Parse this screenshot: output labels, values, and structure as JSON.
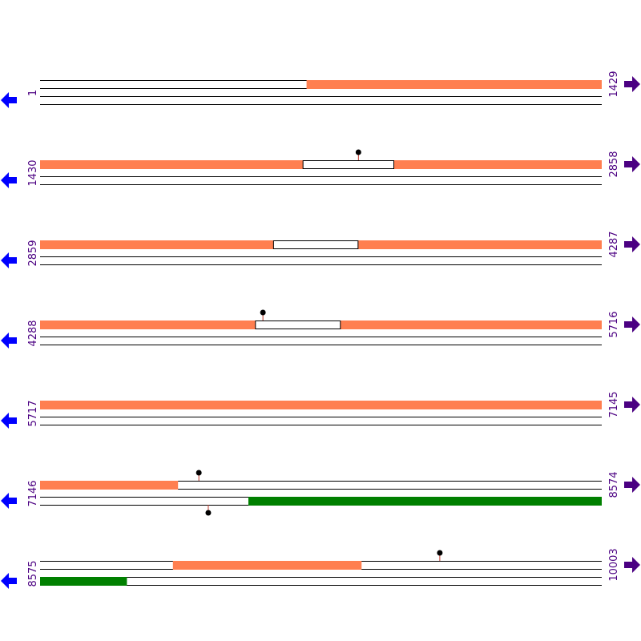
{
  "colors": {
    "forward_feature": "#ff7f50",
    "reverse_feature": "#008000",
    "line": "#000000",
    "marker_stem": "#c0392b",
    "marker_head": "#000000",
    "left_arrow": "#0000ff",
    "right_arrow": "#4b0082",
    "number": "#4b0082"
  },
  "icons": {
    "left": "arrow-left-icon",
    "right": "arrow-right-icon"
  },
  "rows": [
    {
      "start": 1,
      "end": 1429,
      "forward": [
        [
          679,
          1429
        ]
      ],
      "reverse": [],
      "gaps": [],
      "markers": []
    },
    {
      "start": 1430,
      "end": 2858,
      "forward": [
        [
          1430,
          2098
        ],
        [
          2330,
          2858
        ]
      ],
      "reverse": [],
      "gaps": [
        [
          2099,
          2329
        ]
      ],
      "markers": [
        {
          "pos": 2240,
          "strand": "top"
        }
      ]
    },
    {
      "start": 2859,
      "end": 4287,
      "forward": [
        [
          2859,
          3452
        ],
        [
          3668,
          4287
        ]
      ],
      "reverse": [],
      "gaps": [
        [
          3453,
          3667
        ]
      ],
      "markers": []
    },
    {
      "start": 4288,
      "end": 5716,
      "forward": [
        [
          4288,
          4835
        ],
        [
          5052,
          5716
        ]
      ],
      "reverse": [],
      "gaps": [
        [
          4836,
          5051
        ]
      ],
      "markers": [
        {
          "pos": 4855,
          "strand": "top"
        }
      ]
    },
    {
      "start": 5717,
      "end": 7145,
      "forward": [
        [
          5717,
          7145
        ]
      ],
      "reverse": [],
      "gaps": [],
      "markers": []
    },
    {
      "start": 7146,
      "end": 8574,
      "forward": [
        [
          7146,
          7496
        ]
      ],
      "reverse": [
        [
          7676,
          8574
        ]
      ],
      "gaps": [],
      "markers": [
        {
          "pos": 7550,
          "strand": "top"
        },
        {
          "pos": 7574,
          "strand": "bottom"
        }
      ]
    },
    {
      "start": 8575,
      "end": 10003,
      "forward": [
        [
          8913,
          9392
        ]
      ],
      "reverse": [
        [
          8575,
          8795
        ]
      ],
      "gaps": [],
      "markers": [
        {
          "pos": 9592,
          "strand": "top"
        }
      ]
    }
  ]
}
